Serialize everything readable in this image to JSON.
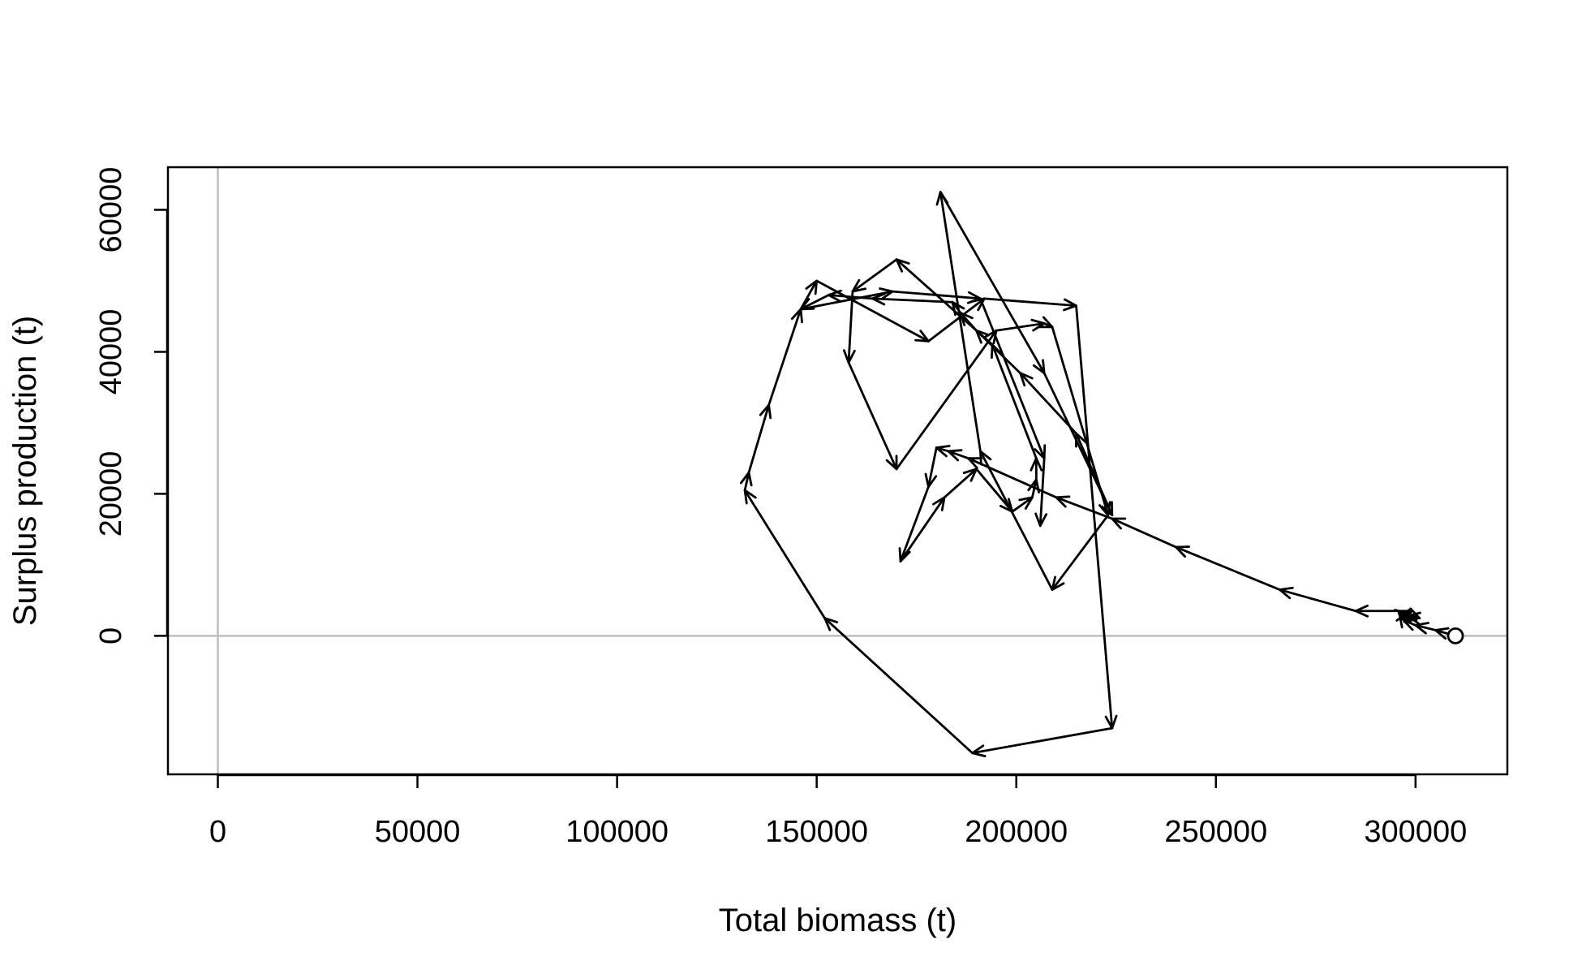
{
  "chart_data": {
    "type": "line",
    "title": "",
    "xlabel": "Total biomass (t)",
    "ylabel": "Surplus production (t)",
    "xlim": [
      -12500,
      323000
    ],
    "ylim": [
      -19500,
      66000
    ],
    "xticks": [
      0,
      50000,
      100000,
      150000,
      200000,
      250000,
      300000
    ],
    "yticks": [
      0,
      20000,
      40000,
      60000
    ],
    "reference_lines": {
      "x": 0,
      "y": 0,
      "color": "#bebebe"
    },
    "line_color": "#000000",
    "arrows": true,
    "start_marker": "open-circle",
    "series": [
      {
        "x": [
          310000,
          305000,
          300000,
          297000,
          296000,
          298000,
          301000,
          298000,
          296000,
          299000,
          285000,
          266000,
          240000,
          224000,
          210000,
          188000,
          183000,
          180000,
          178000,
          171000,
          182000,
          190000,
          199000,
          204000,
          205000,
          205000,
          194000,
          170000,
          159000,
          158000,
          170000,
          195000,
          207000,
          209000,
          223000,
          209000,
          191000,
          181000,
          207000,
          224000,
          215000,
          201000,
          190000,
          186000,
          184000,
          164000,
          153000,
          146000,
          150000,
          178000,
          192000,
          215000,
          224000,
          189000,
          152000,
          132000,
          133000,
          138000,
          146000,
          169000,
          191000,
          207000,
          206000
        ],
        "y": [
          0,
          800,
          1500,
          2200,
          3000,
          3200,
          2500,
          2800,
          2400,
          3500,
          3500,
          6500,
          12500,
          16500,
          19500,
          25000,
          26000,
          26500,
          21000,
          10500,
          19500,
          23500,
          17500,
          19500,
          22000,
          25000,
          41000,
          53000,
          48500,
          38500,
          23500,
          43000,
          44000,
          43500,
          17000,
          6500,
          26000,
          62500,
          37000,
          17000,
          28500,
          37000,
          43000,
          45500,
          47000,
          47500,
          48000,
          46000,
          50000,
          41500,
          47500,
          46500,
          -13000,
          -16500,
          2500,
          20500,
          23000,
          32500,
          46000,
          48500,
          47500,
          25000,
          15500
        ]
      }
    ]
  }
}
